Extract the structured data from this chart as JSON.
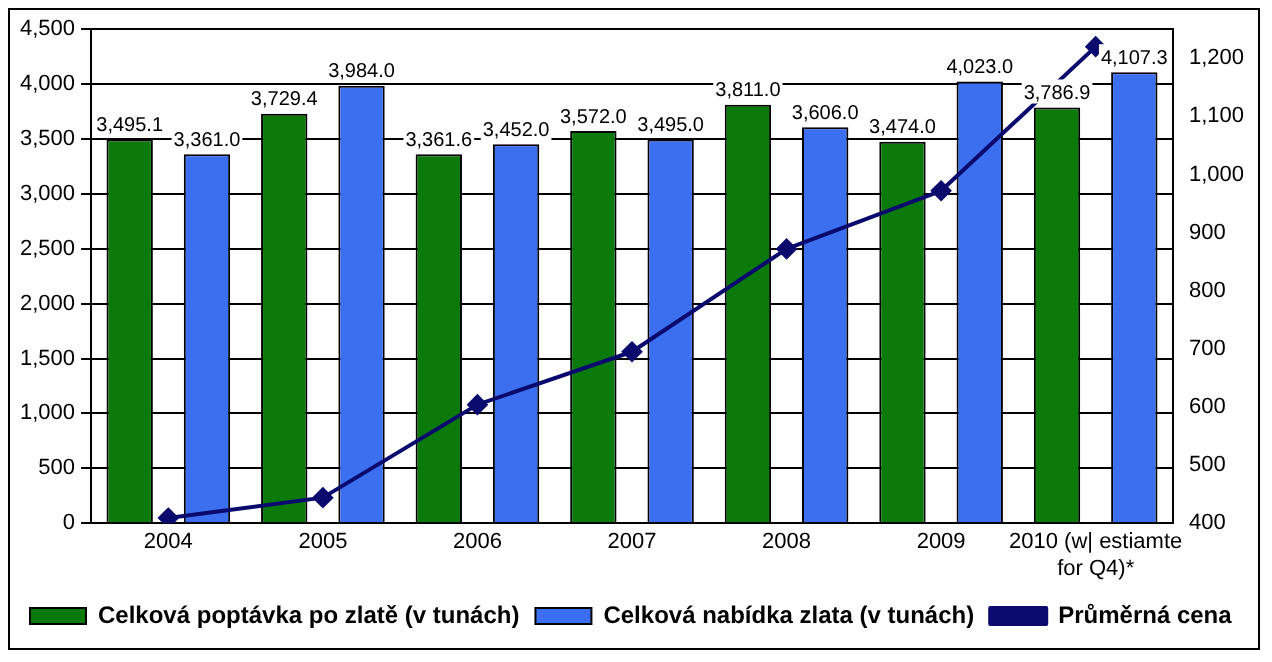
{
  "chart_data": {
    "type": "bar",
    "categories": [
      "2004",
      "2005",
      "2006",
      "2007",
      "2008",
      "2009",
      "2010 (w| estiamte for Q4)*"
    ],
    "series": [
      {
        "name": "Celková poptávka po zlatě (v tunách)",
        "color": "#0b7a0b",
        "values": [
          3495.1,
          3729.4,
          3361.6,
          3572.0,
          3811.0,
          3474.0,
          3786.9
        ],
        "value_labels": [
          "3,495.1",
          "3,729.4",
          "3,361.6",
          "3,572.0",
          "3,811.0",
          "3,474.0",
          "3,786.9"
        ]
      },
      {
        "name": "Celková nabídka zlata (v tunách)",
        "color": "#3c6ef0",
        "values": [
          3361.0,
          3984.0,
          3452.0,
          3495.0,
          3606.0,
          4023.0,
          4107.3
        ],
        "value_labels": [
          "3,361.0",
          "3,984.0",
          "3,452.0",
          "3,495.0",
          "3,606.0",
          "4,023.0",
          "4,107.3"
        ]
      },
      {
        "name": "Průměrná cena",
        "type": "line",
        "axis": "y2",
        "color": "#0a0a6e",
        "values": [
          409,
          444,
          604,
          695,
          872,
          972,
          1220
        ]
      }
    ],
    "ylim": [
      0,
      4500
    ],
    "yticks": [
      {
        "value": 0,
        "label": "0"
      },
      {
        "value": 500,
        "label": "500"
      },
      {
        "value": 1000,
        "label": "1,000"
      },
      {
        "value": 1500,
        "label": "1,500"
      },
      {
        "value": 2000,
        "label": "2,000"
      },
      {
        "value": 2500,
        "label": "2,500"
      },
      {
        "value": 3000,
        "label": "3,000"
      },
      {
        "value": 3500,
        "label": "3,500"
      },
      {
        "value": 4000,
        "label": "4,000"
      },
      {
        "value": 4500,
        "label": "4,500"
      }
    ],
    "y2lim": [
      400,
      1250
    ],
    "y2ticks": [
      400,
      500,
      600,
      700,
      800,
      900,
      {
        "value": 1000,
        "label": "1,000"
      },
      {
        "value": 1100,
        "label": "1,100"
      },
      {
        "value": 1200,
        "label": "1,200"
      }
    ],
    "grid": "y",
    "legend": "bottom",
    "marker": "diamond",
    "line_style": "solid"
  }
}
